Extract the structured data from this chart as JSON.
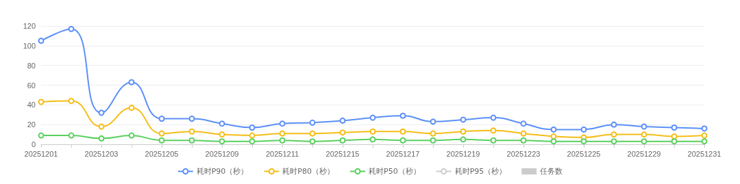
{
  "chart_data": {
    "type": "line",
    "categories": [
      "20251201",
      null,
      "20251203",
      null,
      "20251205",
      null,
      "20251209",
      null,
      "20251211",
      null,
      "20251215",
      null,
      "20251217",
      null,
      "20251219",
      null,
      "20251223",
      null,
      "20251225",
      null,
      "20251229",
      null,
      "20251231"
    ],
    "series": [
      {
        "name": "耗时P90（秒）",
        "color": "#5b8ff9",
        "values": [
          105,
          117,
          32,
          63,
          26,
          26,
          21,
          17,
          21,
          22,
          24,
          27,
          29,
          23,
          25,
          27,
          21,
          15,
          15,
          20,
          18,
          17,
          16
        ]
      },
      {
        "name": "耗时P80（秒）",
        "color": "#f6bd16",
        "values": [
          43,
          44,
          18,
          37,
          11,
          13,
          10,
          9,
          11,
          11,
          12,
          13,
          13,
          11,
          13,
          14,
          11,
          8,
          7,
          10,
          10,
          8,
          9
        ]
      },
      {
        "name": "耗时P50（秒）",
        "color": "#5ad05e",
        "values": [
          9,
          9,
          6,
          9,
          4,
          4,
          3,
          3,
          4,
          3,
          4,
          5,
          4,
          4,
          5,
          4,
          4,
          3,
          3,
          3,
          3,
          3,
          3
        ]
      },
      {
        "name": "耗时P95（秒）",
        "color": "#cccccc",
        "values": [
          null,
          null,
          null,
          null,
          null,
          null,
          null,
          null,
          null,
          null,
          null,
          null,
          null,
          null,
          null,
          null,
          null,
          null,
          null,
          null,
          null,
          null,
          null
        ]
      },
      {
        "name": "任务数",
        "type": "bar",
        "color": "#cccccc",
        "values": [
          null,
          null,
          null,
          null,
          null,
          null,
          null,
          null,
          null,
          null,
          null,
          null,
          null,
          null,
          null,
          null,
          null,
          null,
          null,
          null,
          null,
          null,
          null
        ]
      }
    ],
    "ylim": [
      0,
      120
    ],
    "yticks": [
      0,
      20,
      40,
      60,
      80,
      100,
      120
    ],
    "grid": "y",
    "legend": "bottom",
    "marker": "circle",
    "line_style": "solid"
  }
}
